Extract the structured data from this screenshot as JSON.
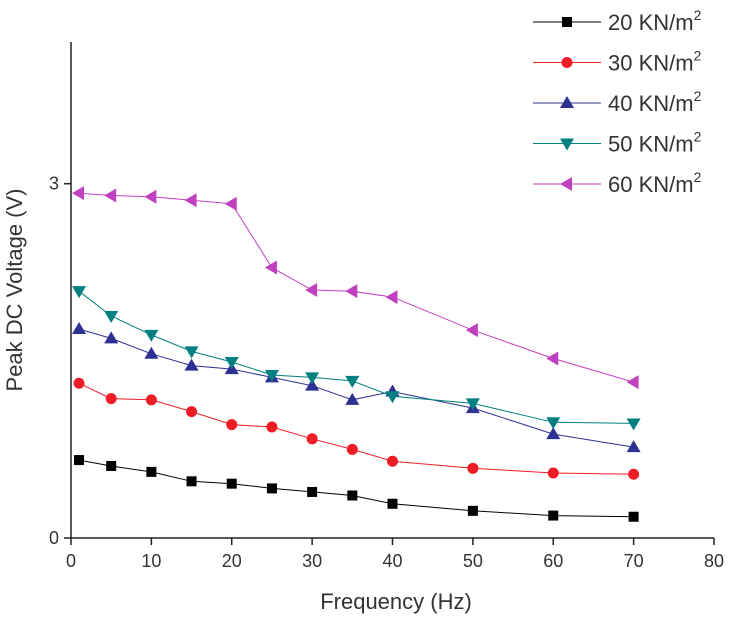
{
  "chart_data": {
    "type": "line",
    "xlabel": "Frequency (Hz)",
    "ylabel": "Peak DC Voltage (V)",
    "xlim": [
      0,
      80
    ],
    "ylim": [
      0,
      4.2
    ],
    "xticks": [
      0,
      10,
      20,
      30,
      40,
      50,
      60,
      70,
      80
    ],
    "xtick_labels": [
      "0",
      "10",
      "20",
      "30",
      "40",
      "50",
      "60",
      "70",
      "80"
    ],
    "yticks": [
      0,
      3
    ],
    "ytick_labels": [
      "0",
      "3"
    ],
    "legend_position": "top-right",
    "legend_unit_suffix": "2",
    "series": [
      {
        "name": "20 KN/m",
        "color": "#000000",
        "marker": "square",
        "x": [
          1,
          5,
          10,
          15,
          20,
          25,
          30,
          35,
          40,
          50,
          60,
          70
        ],
        "y": [
          0.66,
          0.61,
          0.56,
          0.48,
          0.46,
          0.42,
          0.39,
          0.36,
          0.29,
          0.23,
          0.19,
          0.18
        ]
      },
      {
        "name": "30 KN/m",
        "color": "#ee1c24",
        "marker": "circle",
        "x": [
          1,
          5,
          10,
          15,
          20,
          25,
          30,
          35,
          40,
          50,
          60,
          70
        ],
        "y": [
          1.31,
          1.18,
          1.17,
          1.07,
          0.96,
          0.94,
          0.84,
          0.75,
          0.65,
          0.59,
          0.55,
          0.54
        ]
      },
      {
        "name": "40 KN/m",
        "color": "#2e3192",
        "marker": "triangle-up",
        "x": [
          1,
          5,
          10,
          15,
          20,
          25,
          30,
          35,
          40,
          50,
          60,
          70
        ],
        "y": [
          1.77,
          1.69,
          1.56,
          1.46,
          1.43,
          1.36,
          1.29,
          1.17,
          1.24,
          1.1,
          0.88,
          0.77
        ]
      },
      {
        "name": "50 KN/m",
        "color": "#008080",
        "marker": "triangle-down",
        "x": [
          1,
          5,
          10,
          15,
          20,
          25,
          30,
          35,
          40,
          50,
          60,
          70
        ],
        "y": [
          2.09,
          1.88,
          1.72,
          1.58,
          1.49,
          1.38,
          1.36,
          1.33,
          1.2,
          1.14,
          0.98,
          0.97
        ]
      },
      {
        "name": "60 KN/m",
        "color": "#c040c0",
        "marker": "triangle-left",
        "x": [
          1,
          5,
          10,
          15,
          20,
          25,
          30,
          35,
          40,
          50,
          60,
          70
        ],
        "y": [
          2.92,
          2.9,
          2.89,
          2.86,
          2.83,
          2.29,
          2.1,
          2.09,
          2.04,
          1.76,
          1.52,
          1.32
        ]
      }
    ]
  }
}
